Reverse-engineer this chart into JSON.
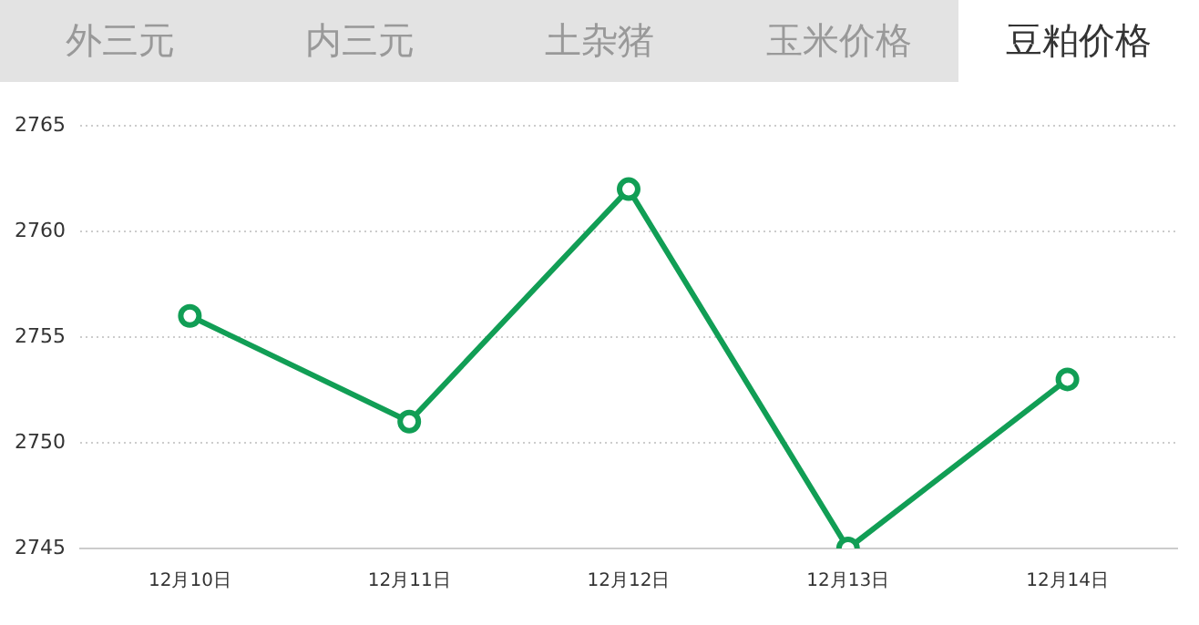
{
  "chart_data": {
    "type": "line",
    "title": "豆粕价格",
    "annotations": [
      "外三元",
      "内三元",
      "土杂猪",
      "玉米价格"
    ],
    "categories": [
      "12月10日",
      "12月11日",
      "12月12日",
      "12月13日",
      "12月14日"
    ],
    "series": [
      {
        "color": "#119e55",
        "values": [
          2756,
          2751,
          2762,
          2745,
          2753
        ]
      }
    ],
    "ylim": [
      2745,
      2765
    ],
    "yticks": [
      2745,
      2750,
      2755,
      2760,
      2765
    ],
    "grid": "y",
    "legend": false,
    "marker": "circle",
    "line_style": "solid"
  }
}
